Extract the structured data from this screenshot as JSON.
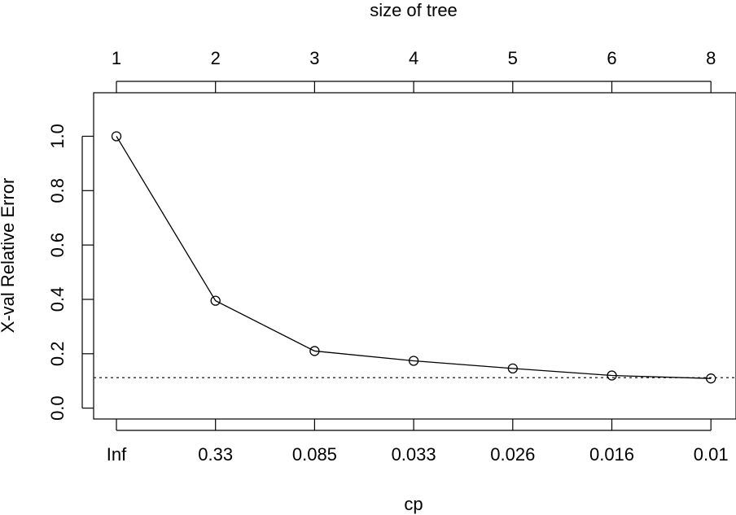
{
  "chart_data": {
    "type": "line",
    "xlabel": "cp",
    "ylabel": "X-val Relative Error",
    "top_axis_label": "size of tree",
    "x_tick_labels": [
      "Inf",
      "0.33",
      "0.085",
      "0.033",
      "0.026",
      "0.016",
      "0.01"
    ],
    "top_tick_labels": [
      "1",
      "2",
      "3",
      "4",
      "5",
      "6",
      "8"
    ],
    "y_ticks": [
      "0.0",
      "0.2",
      "0.4",
      "0.6",
      "0.8",
      "1.0"
    ],
    "ylim": [
      -0.04,
      1.16
    ],
    "values": [
      1.0,
      0.395,
      0.21,
      0.174,
      0.146,
      0.12,
      0.109
    ],
    "reference_line": 0.112,
    "point_marker": "open-circle",
    "grid": false
  }
}
